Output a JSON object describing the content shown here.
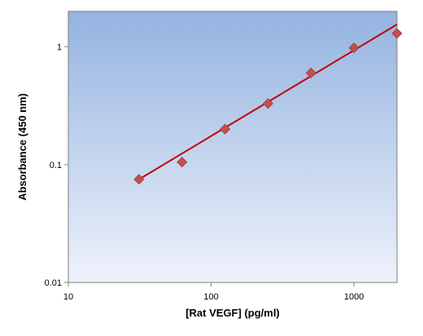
{
  "chart_data": {
    "type": "scatter",
    "title": "",
    "xlabel": "[Rat VEGF] (pg/ml)",
    "ylabel": "Absorbance (450 nm)",
    "x_scale": "log",
    "y_scale": "log",
    "xlim": [
      10,
      2000
    ],
    "ylim": [
      0.01,
      2
    ],
    "x_ticks": [
      {
        "value": 10,
        "label": "10"
      },
      {
        "value": 100,
        "label": "100"
      },
      {
        "value": 1000,
        "label": "1000"
      }
    ],
    "y_ticks": [
      {
        "value": 0.01,
        "label": "0.01"
      },
      {
        "value": 0.1,
        "label": "0.1"
      },
      {
        "value": 1,
        "label": "1"
      }
    ],
    "series": [
      {
        "type": "scatter",
        "marker": "diamond",
        "color": "#c0504d",
        "x": [
          31.25,
          62.5,
          125,
          250,
          500,
          1000,
          2000
        ],
        "y": [
          0.075,
          0.105,
          0.2,
          0.33,
          0.6,
          0.98,
          1.3
        ]
      },
      {
        "type": "line",
        "color": "#c00000",
        "x": [
          31.25,
          2000
        ],
        "y": [
          0.075,
          1.55
        ]
      }
    ],
    "grid": false,
    "legend": "none",
    "plot_background": {
      "top": "#94b3e0",
      "bottom": "#eef2fb"
    }
  }
}
